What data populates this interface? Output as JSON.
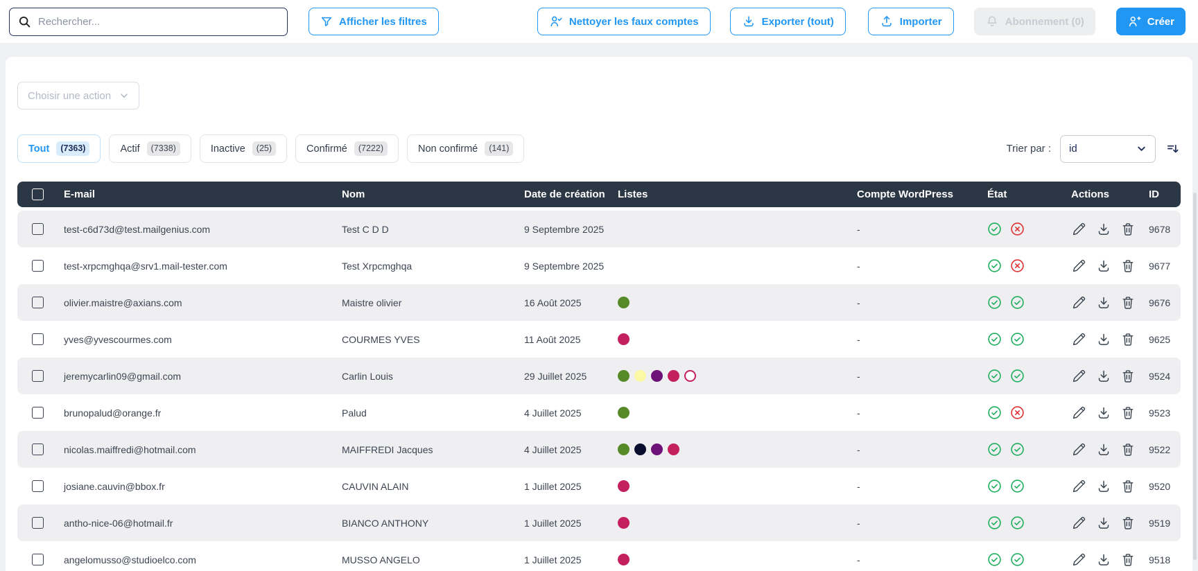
{
  "colors": {
    "accent": "#2196f3",
    "accent-light": "#d8edfc",
    "navy": "#1d2b57",
    "search-border": "#25305e",
    "header-bg": "#2b3744",
    "stripe": "#efeff1",
    "text": "#3d4552",
    "green": "#1fae5e",
    "red": "#e03131",
    "disabled-bg": "#eceef0",
    "disabled-text": "#c7ccd3",
    "page-bg": "#eff0f3",
    "border-gray": "#e3e4e9"
  },
  "topbar": {
    "search_placeholder": "Rechercher...",
    "filters": "Afficher les filtres",
    "clean": "Nettoyer les faux comptes",
    "export": "Exporter (tout)",
    "import": "Importer",
    "subscription": "Abonnement (0)",
    "create": "Créer"
  },
  "toolbar": {
    "action_placeholder": "Choisir une action",
    "sort_label": "Trier par :",
    "sort_value": "id"
  },
  "tabs": [
    {
      "label": "Tout",
      "count": "(7363)",
      "active": true
    },
    {
      "label": "Actif",
      "count": "(7338)",
      "active": false
    },
    {
      "label": "Inactive",
      "count": "(25)",
      "active": false
    },
    {
      "label": "Confirmé",
      "count": "(7222)",
      "active": false
    },
    {
      "label": "Non confirmé",
      "count": "(141)",
      "active": false
    }
  ],
  "list_colors": {
    "green": "#568a28",
    "yellow": "#fbf8a6",
    "purple": "#6e1278",
    "pink": "#c41f5e",
    "navy": "#0a0e2e"
  },
  "table": {
    "headers": {
      "email": "E-mail",
      "name": "Nom",
      "date": "Date de création",
      "lists": "Listes",
      "wordpress": "Compte WordPress",
      "state": "État",
      "actions": "Actions",
      "id": "ID"
    },
    "rows": [
      {
        "email": "test-c6d73d@test.mailgenius.com",
        "name": "Test C D D",
        "date": "9 Septembre 2025",
        "lists": [],
        "wordpress": "-",
        "states": [
          "valid",
          "invalid"
        ],
        "id": "9678"
      },
      {
        "email": "test-xrpcmghqa@srv1.mail-tester.com",
        "name": "Test Xrpcmghqa",
        "date": "9 Septembre 2025",
        "lists": [],
        "wordpress": "-",
        "states": [
          "valid",
          "invalid"
        ],
        "id": "9677"
      },
      {
        "email": "olivier.maistre@axians.com",
        "name": "Maistre olivier",
        "date": "16 Août 2025",
        "lists": [
          "green"
        ],
        "wordpress": "-",
        "states": [
          "valid",
          "valid"
        ],
        "id": "9676"
      },
      {
        "email": "yves@yvescourmes.com",
        "name": "COURMES YVES",
        "date": "11 Août 2025",
        "lists": [
          "pink"
        ],
        "wordpress": "-",
        "states": [
          "valid",
          "valid"
        ],
        "id": "9625"
      },
      {
        "email": "jeremycarlin09@gmail.com",
        "name": "Carlin Louis",
        "date": "29 Juillet 2025",
        "lists": [
          "green",
          "yellow",
          "purple",
          "pink",
          "outline"
        ],
        "wordpress": "-",
        "states": [
          "valid",
          "valid"
        ],
        "id": "9524"
      },
      {
        "email": "brunopalud@orange.fr",
        "name": "Palud",
        "date": "4 Juillet 2025",
        "lists": [
          "green"
        ],
        "wordpress": "-",
        "states": [
          "valid",
          "invalid"
        ],
        "id": "9523"
      },
      {
        "email": "nicolas.maiffredi@hotmail.com",
        "name": "MAIFFREDI Jacques",
        "date": "4 Juillet 2025",
        "lists": [
          "green",
          "navy",
          "purple",
          "pink"
        ],
        "wordpress": "-",
        "states": [
          "valid",
          "valid"
        ],
        "id": "9522"
      },
      {
        "email": "josiane.cauvin@bbox.fr",
        "name": "CAUVIN ALAIN",
        "date": "1 Juillet 2025",
        "lists": [
          "pink"
        ],
        "wordpress": "-",
        "states": [
          "valid",
          "valid"
        ],
        "id": "9520"
      },
      {
        "email": "antho-nice-06@hotmail.fr",
        "name": "BIANCO ANTHONY",
        "date": "1 Juillet 2025",
        "lists": [
          "pink"
        ],
        "wordpress": "-",
        "states": [
          "valid",
          "valid"
        ],
        "id": "9519"
      },
      {
        "email": "angelomusso@studioelco.com",
        "name": "MUSSO ANGELO",
        "date": "1 Juillet 2025",
        "lists": [
          "pink"
        ],
        "wordpress": "-",
        "states": [
          "valid",
          "valid"
        ],
        "id": "9518"
      }
    ]
  }
}
